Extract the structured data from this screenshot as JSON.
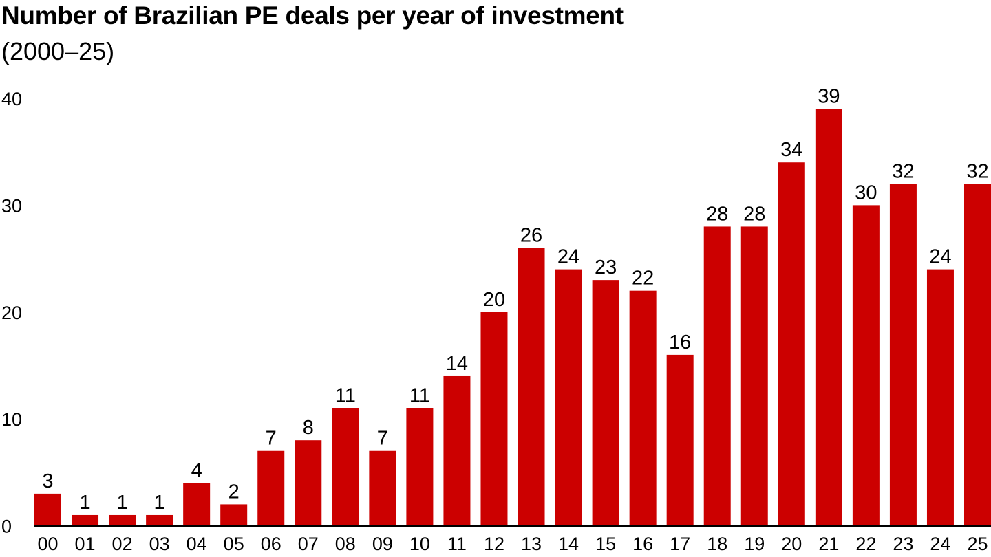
{
  "chart_data": {
    "type": "bar",
    "title": "Number of Brazilian PE deals per year of investment",
    "subtitle": "(2000–25)",
    "xlabel": "",
    "ylabel": "",
    "categories": [
      "00",
      "01",
      "02",
      "03",
      "04",
      "05",
      "06",
      "07",
      "08",
      "09",
      "10",
      "11",
      "12",
      "13",
      "14",
      "15",
      "16",
      "17",
      "18",
      "19",
      "20",
      "21",
      "22",
      "23",
      "24",
      "25"
    ],
    "values": [
      3,
      1,
      1,
      1,
      4,
      2,
      7,
      8,
      11,
      7,
      11,
      14,
      20,
      26,
      24,
      23,
      22,
      16,
      28,
      28,
      34,
      39,
      30,
      32,
      24,
      32
    ],
    "ylim": [
      0,
      40
    ],
    "yticks": [
      0,
      10,
      20,
      30,
      40
    ],
    "grid": false,
    "legend": "none",
    "bar_color": "#CC0000",
    "axis_color": "#000000"
  }
}
